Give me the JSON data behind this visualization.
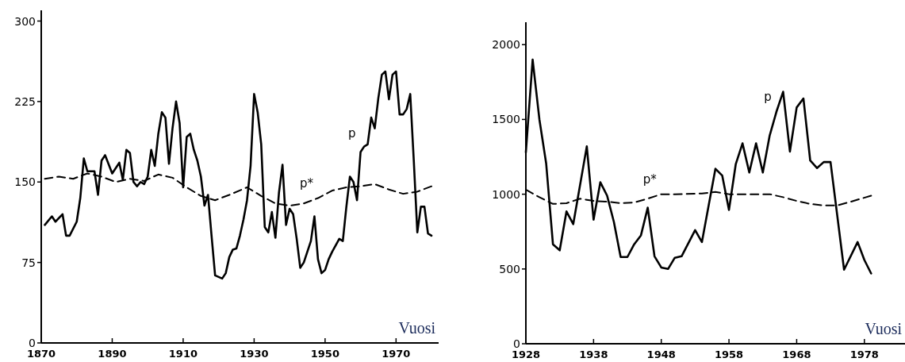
{
  "chart_data": [
    {
      "type": "line",
      "xlabel": "Vuosi",
      "xlim": [
        1870,
        1982
      ],
      "xticks": [
        1870,
        1890,
        1910,
        1930,
        1950,
        1970
      ],
      "ylim": [
        0,
        310
      ],
      "yticks": [
        0,
        75,
        150,
        225,
        300
      ],
      "series": [
        {
          "name": "p",
          "color": "#000000",
          "line_style": "solid",
          "x": [
            1871,
            1873,
            1874,
            1876,
            1877,
            1878,
            1880,
            1881,
            1882,
            1883,
            1885,
            1886,
            1887,
            1888,
            1890,
            1892,
            1893,
            1894,
            1895,
            1896,
            1897,
            1898,
            1899,
            1900,
            1901,
            1902,
            1903,
            1904,
            1905,
            1906,
            1907,
            1908,
            1909,
            1910,
            1911,
            1912,
            1913,
            1914,
            1915,
            1916,
            1917,
            1918,
            1919,
            1921,
            1922,
            1923,
            1924,
            1925,
            1926,
            1927,
            1928,
            1929,
            1930,
            1931,
            1932,
            1933,
            1934,
            1935,
            1936,
            1937,
            1938,
            1939,
            1940,
            1941,
            1942,
            1943,
            1944,
            1946,
            1947,
            1948,
            1949,
            1950,
            1951,
            1952,
            1954,
            1955,
            1956,
            1957,
            1958,
            1959,
            1960,
            1961,
            1962,
            1963,
            1964,
            1965,
            1966,
            1967,
            1968,
            1969,
            1970,
            1971,
            1972,
            1973,
            1974,
            1975,
            1976,
            1977,
            1978,
            1979,
            1980
          ],
          "values": [
            110,
            118,
            113,
            120,
            100,
            100,
            113,
            135,
            172,
            160,
            160,
            138,
            170,
            175,
            158,
            168,
            152,
            180,
            177,
            150,
            146,
            150,
            148,
            155,
            180,
            165,
            195,
            215,
            210,
            167,
            200,
            225,
            205,
            145,
            192,
            195,
            180,
            170,
            155,
            128,
            138,
            100,
            63,
            60,
            65,
            80,
            87,
            88,
            100,
            115,
            133,
            165,
            232,
            215,
            185,
            108,
            103,
            122,
            98,
            140,
            166,
            110,
            125,
            120,
            97,
            70,
            75,
            95,
            118,
            78,
            65,
            68,
            78,
            85,
            97,
            95,
            127,
            155,
            150,
            133,
            178,
            183,
            185,
            210,
            200,
            228,
            250,
            253,
            227,
            250,
            253,
            213,
            213,
            218,
            232,
            170,
            103,
            127,
            127,
            102,
            100
          ]
        },
        {
          "name": "p*",
          "color": "#000000",
          "line_style": "dashed",
          "x": [
            1871,
            1875,
            1879,
            1883,
            1887,
            1891,
            1895,
            1899,
            1903,
            1907,
            1911,
            1915,
            1919,
            1923,
            1928,
            1932,
            1936,
            1940,
            1944,
            1948,
            1952,
            1956,
            1960,
            1964,
            1968,
            1972,
            1976,
            1980
          ],
          "values": [
            153,
            155,
            153,
            158,
            155,
            150,
            153,
            151,
            157,
            154,
            145,
            137,
            133,
            138,
            145,
            137,
            130,
            128,
            130,
            135,
            142,
            145,
            146,
            148,
            143,
            139,
            141,
            146
          ]
        }
      ]
    },
    {
      "type": "line",
      "xlabel": "Vuosi",
      "xlim": [
        1928,
        1984
      ],
      "xticks": [
        1928,
        1938,
        1948,
        1958,
        1968,
        1978
      ],
      "ylim": [
        0,
        2150
      ],
      "yticks": [
        0,
        500,
        1000,
        1500,
        2000
      ],
      "series": [
        {
          "name": "p",
          "color": "#000000",
          "line_style": "solid",
          "x": [
            1928,
            1929,
            1930,
            1931,
            1932,
            1933,
            1934,
            1935,
            1937,
            1938,
            1939,
            1940,
            1941,
            1942,
            1943,
            1944,
            1945,
            1946,
            1947,
            1948,
            1949,
            1950,
            1951,
            1953,
            1954,
            1956,
            1957,
            1958,
            1959,
            1960,
            1961,
            1962,
            1963,
            1964,
            1965,
            1966,
            1967,
            1968,
            1969,
            1970,
            1971,
            1972,
            1973,
            1975,
            1977,
            1978,
            1979
          ],
          "values": [
            1280,
            1900,
            1500,
            1205,
            665,
            625,
            885,
            800,
            1320,
            830,
            1080,
            990,
            815,
            580,
            580,
            665,
            725,
            910,
            585,
            510,
            500,
            575,
            585,
            760,
            680,
            1170,
            1125,
            895,
            1200,
            1340,
            1145,
            1340,
            1145,
            1390,
            1550,
            1685,
            1285,
            1580,
            1640,
            1225,
            1175,
            1215,
            1215,
            495,
            680,
            560,
            470
          ]
        },
        {
          "name": "p*",
          "color": "#000000",
          "line_style": "dashed",
          "x": [
            1928,
            1930,
            1932,
            1934,
            1936,
            1938,
            1940,
            1942,
            1944,
            1946,
            1948,
            1950,
            1954,
            1956,
            1958,
            1962,
            1964,
            1966,
            1968,
            1970,
            1972,
            1974,
            1976,
            1979
          ],
          "values": [
            1030,
            980,
            935,
            940,
            970,
            955,
            950,
            940,
            945,
            970,
            1000,
            1000,
            1005,
            1015,
            1000,
            1000,
            1000,
            980,
            955,
            935,
            925,
            925,
            950,
            990
          ]
        }
      ]
    }
  ]
}
